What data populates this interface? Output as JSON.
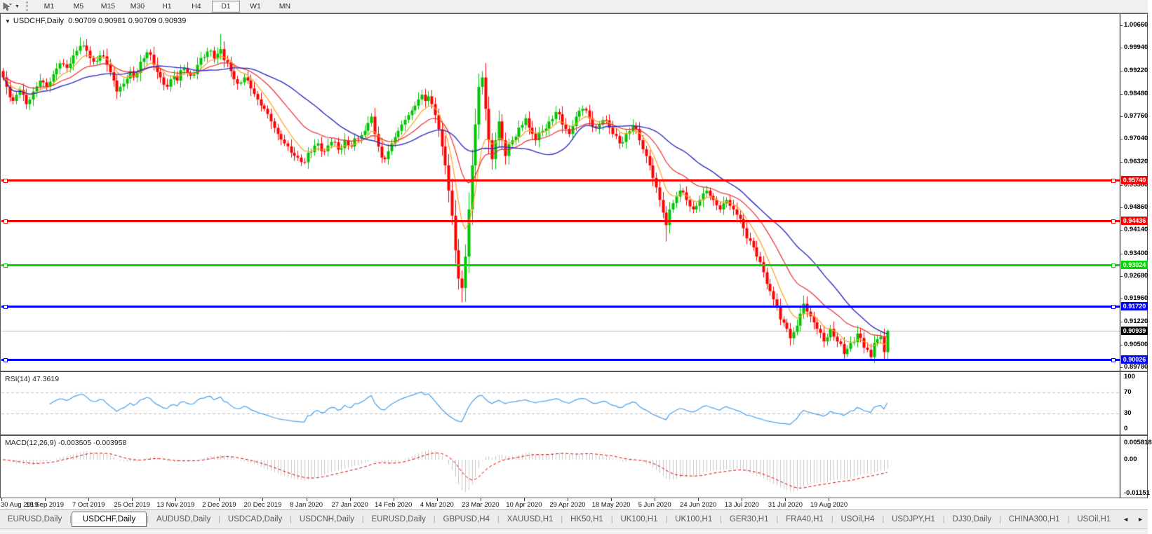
{
  "toolbar": {
    "cursor_tool": "chart-cursor",
    "dropdown": "▼",
    "timeframes": [
      "M1",
      "M5",
      "M15",
      "M30",
      "H1",
      "H4",
      "D1",
      "W1",
      "MN"
    ],
    "active_timeframe": "D1"
  },
  "chart": {
    "collapse_icon": "▼",
    "symbol_title": "USDCHF,Daily",
    "ohlc_text": "0.90709 0.90981 0.90709 0.90939"
  },
  "chart_data": {
    "type": "candlestick",
    "symbol": "USDCHF",
    "timeframe": "Daily",
    "ohlc_current": {
      "open": 0.90709,
      "high": 0.90981,
      "low": 0.90709,
      "close": 0.90939
    },
    "grid": false,
    "legend_position": "none",
    "y_axis": {
      "min": 0.8978,
      "max": 1.0066,
      "tick_labels": [
        "1.00660",
        "0.99940",
        "0.99220",
        "0.98480",
        "0.97760",
        "0.97040",
        "0.96320",
        "0.95580",
        "0.94860",
        "0.94140",
        "0.93400",
        "0.92680",
        "0.91960",
        "0.91220",
        "0.90500",
        "0.89780"
      ]
    },
    "x_axis": {
      "tick_labels": [
        "30 Aug 2019",
        "18 Sep 2019",
        "7 Oct 2019",
        "25 Oct 2019",
        "13 Nov 2019",
        "2 Dec 2019",
        "20 Dec 2019",
        "8 Jan 2020",
        "27 Jan 2020",
        "14 Feb 2020",
        "4 Mar 2020",
        "23 Mar 2020",
        "10 Apr 2020",
        "29 Apr 2020",
        "18 May 2020",
        "5 Jun 2020",
        "24 Jun 2020",
        "13 Jul 2020",
        "31 Jul 2020",
        "19 Aug 2020"
      ],
      "bars_per_tick": 13,
      "total_bars": 265
    },
    "close_anchors": [
      [
        0,
        0.99
      ],
      [
        1,
        0.987
      ],
      [
        3,
        0.9825
      ],
      [
        5,
        0.986
      ],
      [
        7,
        0.9815
      ],
      [
        9,
        0.9855
      ],
      [
        11,
        0.989
      ],
      [
        13,
        0.987
      ],
      [
        15,
        0.991
      ],
      [
        17,
        0.9945
      ],
      [
        19,
        0.993
      ],
      [
        21,
        0.997
      ],
      [
        23,
        1.0
      ],
      [
        25,
        0.9985
      ],
      [
        27,
        0.995
      ],
      [
        29,
        0.997
      ],
      [
        31,
        0.994
      ],
      [
        33,
        0.989
      ],
      [
        34,
        0.9855
      ],
      [
        36,
        0.988
      ],
      [
        38,
        0.992
      ],
      [
        39,
        0.99
      ],
      [
        41,
        0.995
      ],
      [
        43,
        0.998
      ],
      [
        45,
        0.994
      ],
      [
        47,
        0.99
      ],
      [
        49,
        0.987
      ],
      [
        51,
        0.9905
      ],
      [
        52,
        0.989
      ],
      [
        54,
        0.993
      ],
      [
        56,
        0.9905
      ],
      [
        58,
        0.994
      ],
      [
        60,
        0.9965
      ],
      [
        62,
        0.9985
      ],
      [
        63,
        0.996
      ],
      [
        65,
        0.999
      ],
      [
        66,
        0.9955
      ],
      [
        68,
        0.992
      ],
      [
        70,
        0.988
      ],
      [
        72,
        0.99
      ],
      [
        74,
        0.9865
      ],
      [
        76,
        0.983
      ],
      [
        78,
        0.98
      ],
      [
        80,
        0.976
      ],
      [
        82,
        0.972
      ],
      [
        84,
        0.969
      ],
      [
        86,
        0.966
      ],
      [
        88,
        0.9645
      ],
      [
        90,
        0.963
      ],
      [
        91,
        0.966
      ],
      [
        94,
        0.969
      ],
      [
        96,
        0.9665
      ],
      [
        98,
        0.9695
      ],
      [
        100,
        0.967
      ],
      [
        102,
        0.97
      ],
      [
        104,
        0.968
      ],
      [
        106,
        0.9705
      ],
      [
        108,
        0.973
      ],
      [
        109,
        0.9755
      ],
      [
        110,
        0.9775
      ],
      [
        111,
        0.972
      ],
      [
        112,
        0.968
      ],
      [
        113,
        0.9645
      ],
      [
        114,
        0.964
      ],
      [
        115,
        0.9665
      ],
      [
        116,
        0.969
      ],
      [
        117,
        0.971
      ],
      [
        118,
        0.973
      ],
      [
        119,
        0.975
      ],
      [
        120,
        0.9765
      ],
      [
        121,
        0.978
      ],
      [
        122,
        0.9795
      ],
      [
        123,
        0.981
      ],
      [
        124,
        0.983
      ],
      [
        125,
        0.9845
      ],
      [
        126,
        0.9825
      ],
      [
        127,
        0.984
      ],
      [
        128,
        0.9815
      ],
      [
        129,
        0.978
      ],
      [
        130,
        0.9735
      ],
      [
        131,
        0.968
      ],
      [
        132,
        0.962
      ],
      [
        133,
        0.954
      ],
      [
        134,
        0.946
      ],
      [
        135,
        0.935
      ],
      [
        136,
        0.926
      ],
      [
        137,
        0.923
      ],
      [
        138,
        0.933
      ],
      [
        139,
        0.948
      ],
      [
        140,
        0.962
      ],
      [
        141,
        0.975
      ],
      [
        142,
        0.987
      ],
      [
        143,
        0.99
      ],
      [
        144,
        0.98
      ],
      [
        145,
        0.97
      ],
      [
        146,
        0.964
      ],
      [
        147,
        0.97
      ],
      [
        148,
        0.976
      ],
      [
        149,
        0.97
      ],
      [
        150,
        0.965
      ],
      [
        152,
        0.97
      ],
      [
        154,
        0.974
      ],
      [
        156,
        0.977
      ],
      [
        157,
        0.974
      ],
      [
        159,
        0.97
      ],
      [
        161,
        0.973
      ],
      [
        163,
        0.976
      ],
      [
        165,
        0.979
      ],
      [
        167,
        0.975
      ],
      [
        169,
        0.972
      ],
      [
        170,
        0.9745
      ],
      [
        171,
        0.9775
      ],
      [
        173,
        0.98
      ],
      [
        175,
        0.977
      ],
      [
        177,
        0.974
      ],
      [
        179,
        0.9765
      ],
      [
        181,
        0.974
      ],
      [
        182,
        0.972
      ],
      [
        184,
        0.969
      ],
      [
        186,
        0.972
      ],
      [
        188,
        0.9745
      ],
      [
        190,
        0.97
      ],
      [
        192,
        0.965
      ],
      [
        193,
        0.962
      ],
      [
        194,
        0.958
      ],
      [
        195,
        0.955
      ],
      [
        196,
        0.951
      ],
      [
        197,
        0.947
      ],
      [
        198,
        0.943
      ],
      [
        199,
        0.948
      ],
      [
        200,
        0.95
      ],
      [
        202,
        0.954
      ],
      [
        204,
        0.951
      ],
      [
        206,
        0.948
      ],
      [
        208,
        0.951
      ],
      [
        210,
        0.954
      ],
      [
        212,
        0.951
      ],
      [
        214,
        0.948
      ],
      [
        216,
        0.951
      ],
      [
        218,
        0.948
      ],
      [
        220,
        0.945
      ],
      [
        221,
        0.942
      ],
      [
        223,
        0.938
      ],
      [
        225,
        0.933
      ],
      [
        227,
        0.928
      ],
      [
        229,
        0.922
      ],
      [
        231,
        0.917
      ],
      [
        232,
        0.913
      ],
      [
        234,
        0.91
      ],
      [
        235,
        0.907
      ],
      [
        237,
        0.911
      ],
      [
        239,
        0.918
      ],
      [
        241,
        0.914
      ],
      [
        243,
        0.91
      ],
      [
        245,
        0.906
      ],
      [
        247,
        0.91
      ],
      [
        249,
        0.906
      ],
      [
        251,
        0.902
      ],
      [
        253,
        0.9055
      ],
      [
        255,
        0.9085
      ],
      [
        257,
        0.904
      ],
      [
        259,
        0.901
      ],
      [
        260,
        0.9055
      ],
      [
        262,
        0.9075
      ],
      [
        263,
        0.9026
      ],
      [
        264,
        0.90939
      ]
    ],
    "wick_overrides": [
      [
        23,
        "high",
        1.0028
      ],
      [
        65,
        "high",
        1.0038
      ],
      [
        137,
        "low",
        0.9185
      ],
      [
        143,
        "high",
        0.992
      ],
      [
        198,
        "low",
        0.9378
      ],
      [
        235,
        "low",
        0.9046
      ],
      [
        251,
        "low",
        0.9005
      ],
      [
        259,
        "low",
        0.9003
      ],
      [
        263,
        "low",
        0.9003
      ],
      [
        264,
        "high",
        0.90981
      ]
    ],
    "candle_up_color": "#00C400",
    "candle_down_color": "#FF0000",
    "moving_averages": [
      {
        "name": "ma-fast",
        "type": "ema",
        "period": 8,
        "color": "#FFA020"
      },
      {
        "name": "ma-mid",
        "type": "ema",
        "period": 21,
        "color": "#E83030"
      },
      {
        "name": "ma-slow",
        "type": "sma",
        "period": 34,
        "color": "#2E2EC0"
      }
    ],
    "hlines": [
      {
        "label": "0.95740",
        "price": 0.9574,
        "color": "#FF0000",
        "thickness": 3
      },
      {
        "label": "0.94436",
        "price": 0.94436,
        "color": "#FF0000",
        "thickness": 3
      },
      {
        "label": "0.93024",
        "price": 0.93024,
        "color": "#00D800",
        "thickness": 3
      },
      {
        "label": "0.91720",
        "price": 0.9172,
        "color": "#0000FF",
        "thickness": 3
      },
      {
        "label": "0.90026",
        "price": 0.90026,
        "color": "#0000FF",
        "thickness": 3
      }
    ],
    "current_price": {
      "label": "0.90939",
      "value": 0.90939,
      "line_color": "#BDBDBD",
      "badge_bg": "#000000"
    },
    "rsi": {
      "label": "RSI(14) 47.3619",
      "period": 14,
      "value": 47.3619,
      "line_color": "#4DA0E8",
      "level_labels": [
        "100",
        "70",
        "30",
        "0"
      ],
      "levels": [
        100,
        70,
        30,
        0
      ],
      "dashed_levels": [
        70,
        30
      ]
    },
    "macd": {
      "label": "MACD(12,26,9) -0.003505 -0.003958",
      "fast": 12,
      "slow": 26,
      "signal": 9,
      "values": [
        -0.003505,
        -0.003958
      ],
      "hist_color": "#C8C8C8",
      "signal_color": "#E00000",
      "y_labels": [
        "0.005818",
        "0.00",
        "-0.01151"
      ],
      "y_max": 0.005818,
      "y_min": -0.01151
    }
  },
  "bottom_tabs": {
    "items": [
      {
        "label": "EURUSD,Daily"
      },
      {
        "label": "USDCHF,Daily"
      },
      {
        "label": "AUDUSD,Daily"
      },
      {
        "label": "USDCAD,Daily"
      },
      {
        "label": "USDCNH,Daily"
      },
      {
        "label": "EURUSD,Daily"
      },
      {
        "label": "GBPUSD,H4"
      },
      {
        "label": "XAUUSD,H1"
      },
      {
        "label": "HK50,H1"
      },
      {
        "label": "UK100,H1"
      },
      {
        "label": "UK100,H1"
      },
      {
        "label": "GER30,H1"
      },
      {
        "label": "FRA40,H1"
      },
      {
        "label": "USOil,H4"
      },
      {
        "label": "USDJPY,H1"
      },
      {
        "label": "DJ30,Daily"
      },
      {
        "label": "CHINA300,H1"
      },
      {
        "label": "USOil,H1"
      }
    ],
    "active_index": 1,
    "nav_left": "◄",
    "nav_right": "►"
  }
}
